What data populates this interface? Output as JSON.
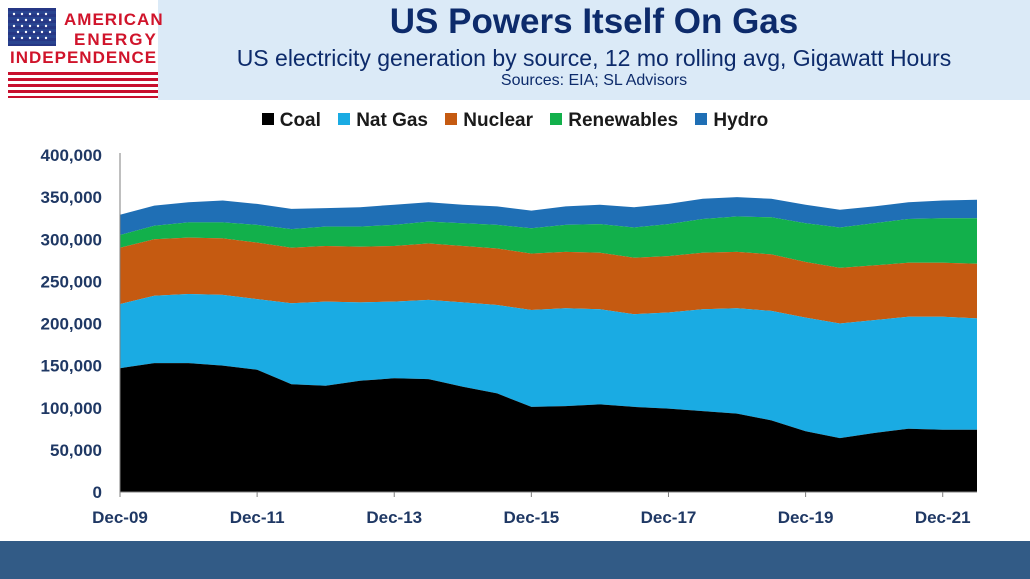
{
  "header": {
    "logo_line1": "AMERICAN",
    "logo_line2": "ENERGY",
    "logo_line3": "INDEPENDENCE"
  },
  "chart_data": {
    "type": "area",
    "stacked": true,
    "title": "US Powers Itself On Gas",
    "subtitle": "US electricity generation by source, 12 mo rolling avg, Gigawatt Hours",
    "sources": "Sources: EIA; SL Advisors",
    "x_tick_labels": [
      "Dec-09",
      "Dec-11",
      "Dec-13",
      "Dec-15",
      "Dec-17",
      "Dec-19",
      "Dec-21"
    ],
    "y_tick_labels": [
      "0",
      "50,000",
      "100,000",
      "150,000",
      "200,000",
      "250,000",
      "300,000",
      "350,000",
      "400,000"
    ],
    "ylim": [
      0,
      400000
    ],
    "x_start_label": "Dec-09",
    "x_points_per_year": 2,
    "legend_position": "top",
    "x": [
      "Dec-09",
      "Jun-10",
      "Dec-10",
      "Jun-11",
      "Dec-11",
      "Jun-12",
      "Dec-12",
      "Jun-13",
      "Dec-13",
      "Jun-14",
      "Dec-14",
      "Jun-15",
      "Dec-15",
      "Jun-16",
      "Dec-16",
      "Jun-17",
      "Dec-17",
      "Jun-18",
      "Dec-18",
      "Jun-19",
      "Dec-19",
      "Jun-20",
      "Dec-20",
      "Jun-21",
      "Dec-21",
      "Jun-22"
    ],
    "series": [
      {
        "name": "Coal",
        "color": "#000000",
        "values": [
          147000,
          153000,
          153000,
          150000,
          145000,
          128000,
          126000,
          132000,
          135000,
          134000,
          125000,
          117000,
          101000,
          102000,
          104000,
          101000,
          99000,
          96000,
          93000,
          85000,
          72000,
          64000,
          70000,
          75000,
          74000,
          74000
        ]
      },
      {
        "name": "Nat Gas",
        "color": "#1aabe3",
        "values": [
          76000,
          80000,
          82000,
          84000,
          84000,
          96000,
          100000,
          93000,
          91000,
          94000,
          100000,
          105000,
          115000,
          116000,
          113000,
          110000,
          114000,
          121000,
          125000,
          130000,
          135000,
          136000,
          134000,
          133000,
          134000,
          132000
        ]
      },
      {
        "name": "Nuclear",
        "color": "#c55a11",
        "values": [
          67000,
          67000,
          67000,
          67000,
          67000,
          66000,
          66000,
          66000,
          66000,
          67000,
          67000,
          67000,
          67000,
          67000,
          67000,
          67000,
          67000,
          67000,
          67000,
          67000,
          66000,
          66000,
          65000,
          64000,
          64000,
          65000
        ]
      },
      {
        "name": "Renewables",
        "color": "#12b04b",
        "values": [
          15000,
          16000,
          18000,
          19000,
          21000,
          22000,
          23000,
          24000,
          25000,
          26000,
          27000,
          28000,
          30000,
          32000,
          34000,
          36000,
          38000,
          40000,
          42000,
          44000,
          46000,
          48000,
          50000,
          52000,
          53000,
          54000
        ]
      },
      {
        "name": "Hydro",
        "color": "#1f6fb5",
        "values": [
          24000,
          24000,
          24000,
          26000,
          25000,
          24000,
          22000,
          23000,
          24000,
          23000,
          22000,
          22000,
          21000,
          22000,
          23000,
          24000,
          24000,
          24000,
          23000,
          22000,
          22000,
          21000,
          20000,
          20000,
          21000,
          22000
        ]
      }
    ]
  }
}
